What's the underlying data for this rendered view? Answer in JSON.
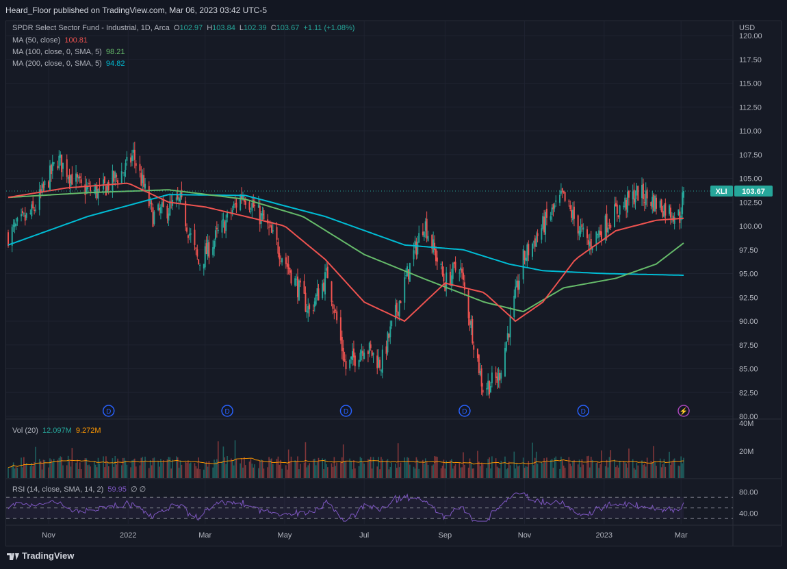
{
  "header": {
    "published": "Heard_Floor published on TradingView.com, Mar 06, 2023 03:42 UTC-5"
  },
  "instrument": {
    "title": "SPDR Select Sector Fund - Industrial, 1D, Arca",
    "o_label": "O",
    "o_value": "102.97",
    "h_label": "H",
    "h_value": "103.84",
    "l_label": "L",
    "l_value": "102.39",
    "c_label": "C",
    "c_value": "103.67",
    "change": "+1.11 (+1.08%)",
    "ticker": "XLI",
    "last_price": "103.67",
    "currency": "USD"
  },
  "indicators": {
    "ma50": {
      "label": "MA (50, close)",
      "value": "100.81",
      "color": "#ef5350"
    },
    "ma100": {
      "label": "MA (100, close, 0, SMA, 5)",
      "value": "98.21",
      "color": "#66bb6a"
    },
    "ma200": {
      "label": "MA (200, close, 0, SMA, 5)",
      "value": "94.82",
      "color": "#00bcd4"
    },
    "volume": {
      "label": "Vol (20)",
      "value1": "12.097M",
      "value2": "9.272M"
    },
    "rsi": {
      "label": "RSI (14, close, SMA, 14, 2)",
      "value": "59.95",
      "extra": "∅ ∅"
    }
  },
  "footer": {
    "brand": "TradingView"
  },
  "colors": {
    "up": "#26a69a",
    "down": "#ef5350",
    "bg": "#161a25",
    "rsi": "#7e57c2",
    "vol_ma": "#ff9800"
  },
  "chart_data": {
    "type": "candlestick",
    "price_axis": {
      "ylim": [
        80,
        120
      ],
      "ticks": [
        "80.00",
        "82.50",
        "85.00",
        "87.50",
        "90.00",
        "92.50",
        "95.00",
        "97.50",
        "100.00",
        "102.50",
        "105.00",
        "107.50",
        "110.00",
        "112.50",
        "115.00",
        "117.50",
        "120.00"
      ]
    },
    "volume_axis": {
      "ticks": [
        "40M",
        "20M"
      ]
    },
    "rsi_axis": {
      "ticks": [
        "80.00",
        "40.00"
      ]
    },
    "x_ticks": [
      "Nov",
      "2022",
      "Mar",
      "May",
      "Jul",
      "Sep",
      "Nov",
      "2023",
      "Mar"
    ],
    "dividend_marker": "D",
    "price_path": [
      [
        "2021-10-01",
        99.0
      ],
      [
        "2021-10-20",
        101.5
      ],
      [
        "2021-11-08",
        107.0
      ],
      [
        "2021-11-26",
        104.0
      ],
      [
        "2021-12-10",
        103.5
      ],
      [
        "2021-12-30",
        106.0
      ],
      [
        "2022-01-05",
        107.5
      ],
      [
        "2022-01-20",
        101.0
      ],
      [
        "2022-02-10",
        102.5
      ],
      [
        "2022-02-24",
        96.0
      ],
      [
        "2022-03-15",
        100.0
      ],
      [
        "2022-03-30",
        103.5
      ],
      [
        "2022-04-15",
        100.5
      ],
      [
        "2022-04-29",
        97.0
      ],
      [
        "2022-05-20",
        91.0
      ],
      [
        "2022-06-03",
        95.0
      ],
      [
        "2022-06-17",
        85.0
      ],
      [
        "2022-07-01",
        87.5
      ],
      [
        "2022-07-14",
        85.5
      ],
      [
        "2022-08-01",
        94.0
      ],
      [
        "2022-08-16",
        100.5
      ],
      [
        "2022-09-01",
        94.0
      ],
      [
        "2022-09-12",
        96.0
      ],
      [
        "2022-09-30",
        83.0
      ],
      [
        "2022-10-12",
        84.0
      ],
      [
        "2022-10-31",
        96.5
      ],
      [
        "2022-11-15",
        100.0
      ],
      [
        "2022-11-30",
        103.0
      ],
      [
        "2022-12-20",
        98.0
      ],
      [
        "2023-01-10",
        101.5
      ],
      [
        "2023-01-27",
        103.5
      ],
      [
        "2023-02-15",
        102.0
      ],
      [
        "2023-02-28",
        101.0
      ],
      [
        "2023-03-03",
        103.67
      ]
    ],
    "ma50_path": [
      [
        "2021-10-01",
        103.0
      ],
      [
        "2021-11-15",
        104.0
      ],
      [
        "2022-01-01",
        104.5
      ],
      [
        "2022-02-01",
        102.5
      ],
      [
        "2022-03-01",
        102.0
      ],
      [
        "2022-04-01",
        101.0
      ],
      [
        "2022-05-01",
        100.0
      ],
      [
        "2022-06-01",
        96.5
      ],
      [
        "2022-07-01",
        92.0
      ],
      [
        "2022-08-01",
        90.0
      ],
      [
        "2022-09-01",
        94.0
      ],
      [
        "2022-10-01",
        93.0
      ],
      [
        "2022-10-25",
        90.0
      ],
      [
        "2022-11-15",
        92.0
      ],
      [
        "2022-12-10",
        96.5
      ],
      [
        "2023-01-10",
        99.5
      ],
      [
        "2023-02-10",
        100.6
      ],
      [
        "2023-03-03",
        100.81
      ]
    ],
    "ma100_path": [
      [
        "2021-10-01",
        103.0
      ],
      [
        "2021-12-01",
        103.5
      ],
      [
        "2022-02-01",
        103.8
      ],
      [
        "2022-04-01",
        102.8
      ],
      [
        "2022-05-15",
        101.0
      ],
      [
        "2022-07-01",
        97.0
      ],
      [
        "2022-08-15",
        94.5
      ],
      [
        "2022-10-01",
        92.0
      ],
      [
        "2022-10-31",
        91.0
      ],
      [
        "2022-12-01",
        93.5
      ],
      [
        "2023-01-10",
        94.5
      ],
      [
        "2023-02-10",
        96.0
      ],
      [
        "2023-03-03",
        98.21
      ]
    ],
    "ma200_path": [
      [
        "2021-10-01",
        98.0
      ],
      [
        "2021-12-01",
        101.0
      ],
      [
        "2022-02-01",
        103.3
      ],
      [
        "2022-04-01",
        103.2
      ],
      [
        "2022-06-01",
        101.0
      ],
      [
        "2022-08-01",
        98.0
      ],
      [
        "2022-09-15",
        97.5
      ],
      [
        "2022-10-20",
        96.0
      ],
      [
        "2022-11-15",
        95.3
      ],
      [
        "2023-01-01",
        95.0
      ],
      [
        "2023-03-03",
        94.82
      ]
    ]
  }
}
